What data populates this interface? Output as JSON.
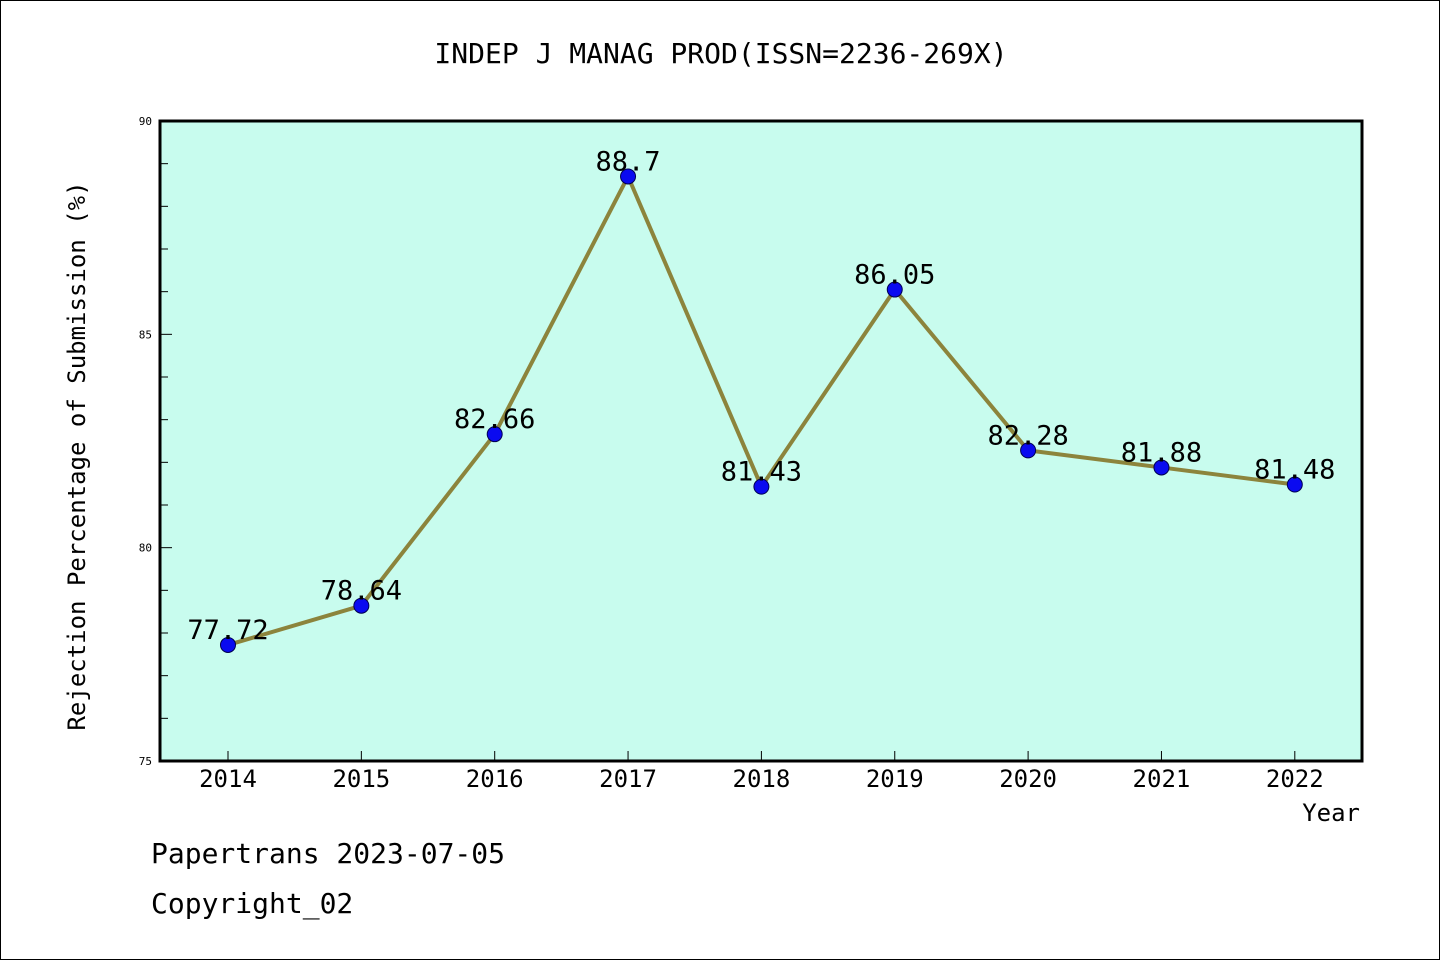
{
  "chart_data": {
    "type": "line",
    "title": "INDEP J MANAG PROD(ISSN=2236-269X)",
    "xlabel": "Year",
    "ylabel": "Rejection Percentage of Submission (%)",
    "categories": [
      "2014",
      "2015",
      "2016",
      "2017",
      "2018",
      "2019",
      "2020",
      "2021",
      "2022"
    ],
    "values": [
      77.72,
      78.64,
      82.66,
      88.7,
      81.43,
      86.05,
      82.28,
      81.88,
      81.48
    ],
    "data_labels": [
      "77.72",
      "78.64",
      "82.66",
      "88.7",
      "81.43",
      "86.05",
      "82.28",
      "81.88",
      "81.48"
    ],
    "ylim": [
      75,
      90
    ],
    "y_ticks": [
      "75",
      "80",
      "85",
      "90"
    ],
    "grid": false,
    "plot_background": "#c8fcee",
    "line_color": "#8c843c",
    "marker_color": "#0a0af0"
  },
  "footer": {
    "date_line": "Papertrans 2023-07-05",
    "copyright_line": "Copyright_02"
  }
}
